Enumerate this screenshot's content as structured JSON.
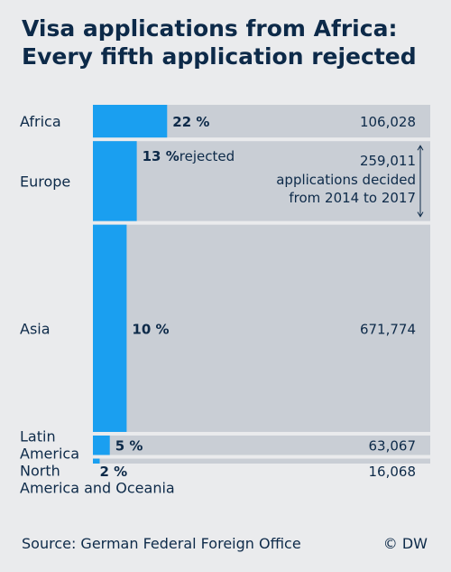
{
  "title_lines": [
    "Visa applications from Africa:",
    "Every fifth application rejected"
  ],
  "source": "Source: German Federal Foreign Office",
  "credit": "© DW",
  "colors": {
    "rejected": "#1a9ff0",
    "total": "#c9ced5",
    "background": "#eaebed",
    "text": "#0d2a49"
  },
  "chart_data": {
    "type": "bar",
    "subtype": "marimekko",
    "categories": [
      {
        "label": [
          "Africa"
        ],
        "rejected_pct": 22,
        "pct_label": "22 %",
        "total": 106028,
        "total_label": "106,028"
      },
      {
        "label": [
          "Europe"
        ],
        "rejected_pct": 13,
        "pct_label": "13 %",
        "pct_suffix": " rejected",
        "total": 259011,
        "total_label": "259,011",
        "annotation": [
          "applications decided",
          "from 2014 to 2017"
        ]
      },
      {
        "label": [
          "Asia"
        ],
        "rejected_pct": 10,
        "pct_label": "10 %",
        "total": 671774,
        "total_label": "671,774"
      },
      {
        "label": [
          "Latin",
          "America"
        ],
        "rejected_pct": 5,
        "pct_label": "5 %",
        "total": 63067,
        "total_label": "63,067"
      },
      {
        "label": [
          "North",
          "America and Oceania"
        ],
        "rejected_pct": 2,
        "pct_label": "2 %",
        "total": 16068,
        "total_label": "16,068"
      }
    ]
  }
}
